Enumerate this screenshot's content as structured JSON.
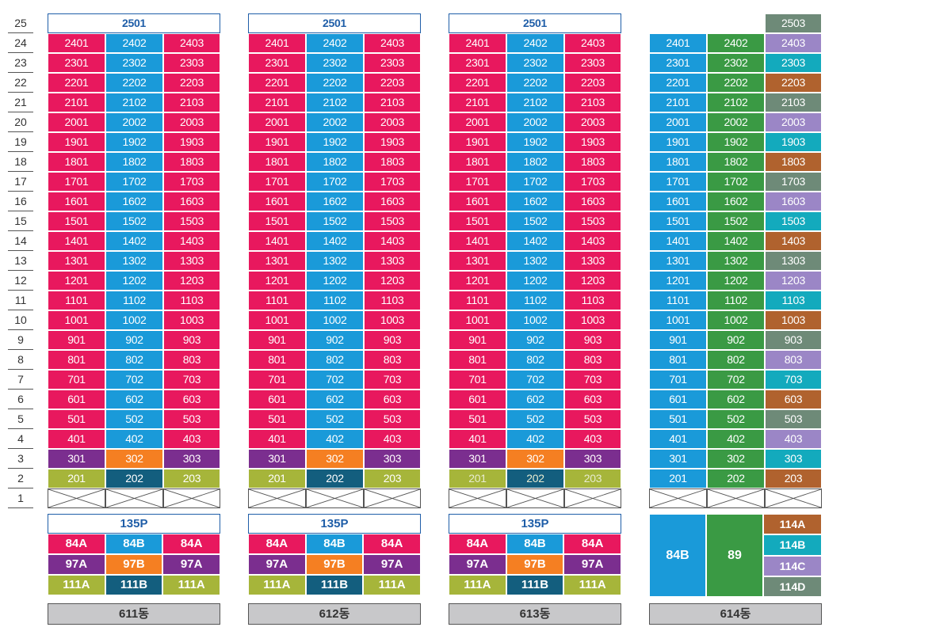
{
  "floors": [
    "25",
    "24",
    "23",
    "22",
    "21",
    "20",
    "19",
    "18",
    "17",
    "16",
    "15",
    "14",
    "13",
    "12",
    "11",
    "10",
    "9",
    "8",
    "7",
    "6",
    "5",
    "4",
    "3",
    "2",
    "1"
  ],
  "colors": {
    "pink": "#e8185e",
    "blue": "#1a9ad9",
    "purple": "#7b2e8f",
    "orange": "#f57f22",
    "olive": "#a6b53a",
    "teal_dark": "#135e7e",
    "green": "#3a9a44",
    "lavender": "#9b86c6",
    "cyan": "#13aabd",
    "brown": "#b0622e",
    "gray_green": "#6e8a78"
  },
  "buildings": [
    {
      "name": "611동",
      "penthouse": "2501",
      "pattern": "A",
      "faded_floor2": false,
      "type_header": "135P",
      "type_rows": [
        {
          "cells": [
            {
              "label": "84A",
              "color": "pink"
            },
            {
              "label": "84B",
              "color": "blue"
            },
            {
              "label": "84A",
              "color": "pink"
            }
          ]
        },
        {
          "cells": [
            {
              "label": "97A",
              "color": "purple"
            },
            {
              "label": "97B",
              "color": "orange"
            },
            {
              "label": "97A",
              "color": "purple"
            }
          ]
        },
        {
          "cells": [
            {
              "label": "111A",
              "color": "olive"
            },
            {
              "label": "111B",
              "color": "teal_dark"
            },
            {
              "label": "111A",
              "color": "olive"
            }
          ]
        }
      ]
    },
    {
      "name": "612동",
      "penthouse": "2501",
      "pattern": "A",
      "faded_floor2": false,
      "type_header": "135P",
      "type_rows": [
        {
          "cells": [
            {
              "label": "84A",
              "color": "pink"
            },
            {
              "label": "84B",
              "color": "blue"
            },
            {
              "label": "84A",
              "color": "pink"
            }
          ]
        },
        {
          "cells": [
            {
              "label": "97A",
              "color": "purple"
            },
            {
              "label": "97B",
              "color": "orange"
            },
            {
              "label": "97A",
              "color": "purple"
            }
          ]
        },
        {
          "cells": [
            {
              "label": "111A",
              "color": "olive"
            },
            {
              "label": "111B",
              "color": "teal_dark"
            },
            {
              "label": "111A",
              "color": "olive"
            }
          ]
        }
      ]
    },
    {
      "name": "613동",
      "penthouse": "2501",
      "pattern": "A",
      "faded_floor2": true,
      "type_header": "135P",
      "type_rows": [
        {
          "cells": [
            {
              "label": "84A",
              "color": "pink"
            },
            {
              "label": "84B",
              "color": "blue"
            },
            {
              "label": "84A",
              "color": "pink"
            }
          ]
        },
        {
          "cells": [
            {
              "label": "97A",
              "color": "purple"
            },
            {
              "label": "97B",
              "color": "orange"
            },
            {
              "label": "97A",
              "color": "purple"
            }
          ]
        },
        {
          "cells": [
            {
              "label": "111A",
              "color": "olive"
            },
            {
              "label": "111B",
              "color": "teal_dark"
            },
            {
              "label": "111A",
              "color": "olive"
            }
          ]
        }
      ]
    },
    {
      "name": "614동",
      "penthouse": "2503",
      "pattern": "B",
      "faded_floor2": false,
      "big_types": [
        {
          "label": "84B",
          "color": "blue"
        },
        {
          "label": "89",
          "color": "green"
        }
      ],
      "small_types": [
        {
          "label": "114A",
          "color": "brown"
        },
        {
          "label": "114B",
          "color": "cyan"
        },
        {
          "label": "114C",
          "color": "lavender"
        },
        {
          "label": "114D",
          "color": "gray_green"
        }
      ]
    }
  ]
}
